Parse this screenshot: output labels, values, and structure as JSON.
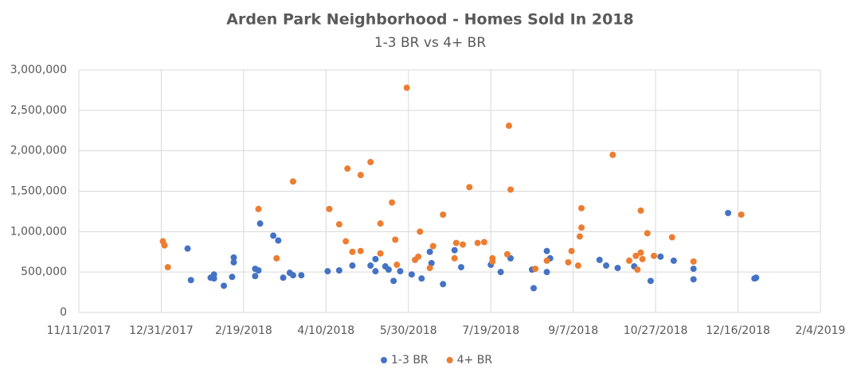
{
  "chart_data": {
    "type": "scatter",
    "title": "Arden Park Neighborhood - Homes Sold In 2018",
    "subtitle": "1-3 BR vs 4+ BR",
    "xlim": [
      "11/11/2017",
      "2/4/2019"
    ],
    "xticks": [
      "11/11/2017",
      "12/31/2017",
      "2/19/2018",
      "4/10/2018",
      "5/30/2018",
      "7/19/2018",
      "9/7/2018",
      "10/27/2018",
      "12/16/2018",
      "2/4/2019"
    ],
    "ylim": [
      0,
      3000000
    ],
    "yticks": [
      0,
      {
        "value": 500000,
        "label": "500,000"
      },
      {
        "value": 1000000,
        "label": "1,000,000"
      },
      {
        "value": 1500000,
        "label": "1,500,000"
      },
      {
        "value": 2000000,
        "label": "2,000,000"
      },
      {
        "value": 2500000,
        "label": "2,500,000"
      },
      {
        "value": 3000000,
        "label": "3,000,000"
      }
    ],
    "grid": true,
    "legend": "bottom",
    "series": [
      {
        "name": "1-3 BR",
        "color": "#4472c4",
        "x": [
          "1/16/2018",
          "1/18/2018",
          "1/30/2018",
          "2/1/2018",
          "2/1/2018",
          "2/7/2018",
          "2/12/2018",
          "2/13/2018",
          "2/13/2018",
          "2/26/2018",
          "2/26/2018",
          "2/28/2018",
          "3/1/2018",
          "3/9/2018",
          "3/12/2018",
          "3/15/2018",
          "3/19/2018",
          "3/21/2018",
          "3/26/2018",
          "4/11/2018",
          "4/18/2018",
          "4/26/2018",
          "5/7/2018",
          "5/10/2018",
          "5/10/2018",
          "5/16/2018",
          "5/18/2018",
          "5/21/2018",
          "5/25/2018",
          "6/1/2018",
          "6/7/2018",
          "6/12/2018",
          "6/13/2018",
          "6/20/2018",
          "6/27/2018",
          "7/1/2018",
          "7/19/2018",
          "7/25/2018",
          "7/31/2018",
          "8/13/2018",
          "8/14/2018",
          "8/22/2018",
          "8/22/2018",
          "8/24/2018",
          "9/23/2018",
          "9/27/2018",
          "10/4/2018",
          "10/14/2018",
          "10/24/2018",
          "10/30/2018",
          "11/7/2018",
          "11/19/2018",
          "11/19/2018",
          "12/10/2018",
          "12/26/2018",
          "12/27/2018"
        ],
        "values": [
          790000,
          400000,
          430000,
          470000,
          420000,
          330000,
          440000,
          680000,
          620000,
          450000,
          540000,
          520000,
          1100000,
          950000,
          890000,
          430000,
          490000,
          460000,
          460000,
          510000,
          520000,
          580000,
          580000,
          660000,
          510000,
          570000,
          530000,
          390000,
          510000,
          470000,
          420000,
          750000,
          610000,
          350000,
          770000,
          560000,
          590000,
          500000,
          670000,
          530000,
          300000,
          760000,
          500000,
          670000,
          650000,
          580000,
          550000,
          570000,
          390000,
          690000,
          640000,
          410000,
          540000,
          1230000,
          420000,
          430000
        ]
      },
      {
        "name": "4+ BR",
        "color": "#ed7d31",
        "x": [
          "1/1/2018",
          "1/2/2018",
          "1/4/2018",
          "2/28/2018",
          "3/11/2018",
          "3/21/2018",
          "4/12/2018",
          "4/18/2018",
          "4/22/2018",
          "4/23/2018",
          "4/26/2018",
          "5/1/2018",
          "5/1/2018",
          "5/7/2018",
          "5/13/2018",
          "5/13/2018",
          "5/20/2018",
          "5/22/2018",
          "5/23/2018",
          "5/29/2018",
          "6/3/2018",
          "6/5/2018",
          "6/6/2018",
          "6/12/2018",
          "6/14/2018",
          "6/20/2018",
          "6/27/2018",
          "6/28/2018",
          "7/2/2018",
          "7/6/2018",
          "7/11/2018",
          "7/15/2018",
          "7/20/2018",
          "7/20/2018",
          "7/29/2018",
          "7/30/2018",
          "7/31/2018",
          "8/15/2018",
          "8/22/2018",
          "9/4/2018",
          "9/6/2018",
          "9/10/2018",
          "9/11/2018",
          "9/12/2018",
          "9/12/2018",
          "10/1/2018",
          "10/11/2018",
          "10/15/2018",
          "10/16/2018",
          "10/18/2018",
          "10/18/2018",
          "10/19/2018",
          "10/22/2018",
          "10/26/2018",
          "11/6/2018",
          "11/19/2018",
          "12/18/2018"
        ],
        "values": [
          880000,
          830000,
          560000,
          1280000,
          670000,
          1620000,
          1280000,
          1090000,
          880000,
          1780000,
          750000,
          760000,
          1700000,
          1860000,
          1100000,
          730000,
          1360000,
          900000,
          590000,
          2780000,
          650000,
          690000,
          1000000,
          550000,
          820000,
          1210000,
          670000,
          860000,
          840000,
          1550000,
          860000,
          870000,
          670000,
          630000,
          720000,
          2310000,
          1520000,
          540000,
          640000,
          620000,
          760000,
          580000,
          940000,
          1050000,
          1290000,
          1950000,
          640000,
          700000,
          530000,
          1260000,
          740000,
          660000,
          980000,
          700000,
          930000,
          630000,
          1210000
        ]
      }
    ]
  }
}
